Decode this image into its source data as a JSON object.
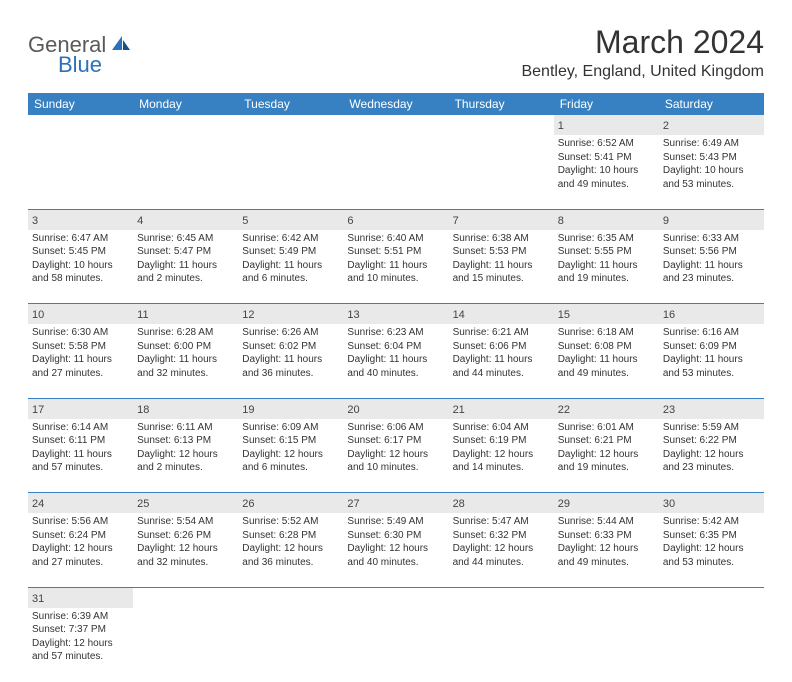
{
  "brand": {
    "part1": "General",
    "part2": "Blue"
  },
  "title": "March 2024",
  "location": "Bentley, England, United Kingdom",
  "dayHeaders": [
    "Sunday",
    "Monday",
    "Tuesday",
    "Wednesday",
    "Thursday",
    "Friday",
    "Saturday"
  ],
  "colors": {
    "headerBg": "#3781c2",
    "headerText": "#ffffff",
    "dayNumBg": "#e9e9e9",
    "cellBorder": "#3781c2",
    "brandGray": "#5a5a5a",
    "brandBlue": "#2b72b8"
  },
  "weeks": [
    [
      {
        "n": "",
        "lines": []
      },
      {
        "n": "",
        "lines": []
      },
      {
        "n": "",
        "lines": []
      },
      {
        "n": "",
        "lines": []
      },
      {
        "n": "",
        "lines": []
      },
      {
        "n": "1",
        "lines": [
          "Sunrise: 6:52 AM",
          "Sunset: 5:41 PM",
          "Daylight: 10 hours",
          "and 49 minutes."
        ]
      },
      {
        "n": "2",
        "lines": [
          "Sunrise: 6:49 AM",
          "Sunset: 5:43 PM",
          "Daylight: 10 hours",
          "and 53 minutes."
        ]
      }
    ],
    [
      {
        "n": "3",
        "lines": [
          "Sunrise: 6:47 AM",
          "Sunset: 5:45 PM",
          "Daylight: 10 hours",
          "and 58 minutes."
        ]
      },
      {
        "n": "4",
        "lines": [
          "Sunrise: 6:45 AM",
          "Sunset: 5:47 PM",
          "Daylight: 11 hours",
          "and 2 minutes."
        ]
      },
      {
        "n": "5",
        "lines": [
          "Sunrise: 6:42 AM",
          "Sunset: 5:49 PM",
          "Daylight: 11 hours",
          "and 6 minutes."
        ]
      },
      {
        "n": "6",
        "lines": [
          "Sunrise: 6:40 AM",
          "Sunset: 5:51 PM",
          "Daylight: 11 hours",
          "and 10 minutes."
        ]
      },
      {
        "n": "7",
        "lines": [
          "Sunrise: 6:38 AM",
          "Sunset: 5:53 PM",
          "Daylight: 11 hours",
          "and 15 minutes."
        ]
      },
      {
        "n": "8",
        "lines": [
          "Sunrise: 6:35 AM",
          "Sunset: 5:55 PM",
          "Daylight: 11 hours",
          "and 19 minutes."
        ]
      },
      {
        "n": "9",
        "lines": [
          "Sunrise: 6:33 AM",
          "Sunset: 5:56 PM",
          "Daylight: 11 hours",
          "and 23 minutes."
        ]
      }
    ],
    [
      {
        "n": "10",
        "lines": [
          "Sunrise: 6:30 AM",
          "Sunset: 5:58 PM",
          "Daylight: 11 hours",
          "and 27 minutes."
        ]
      },
      {
        "n": "11",
        "lines": [
          "Sunrise: 6:28 AM",
          "Sunset: 6:00 PM",
          "Daylight: 11 hours",
          "and 32 minutes."
        ]
      },
      {
        "n": "12",
        "lines": [
          "Sunrise: 6:26 AM",
          "Sunset: 6:02 PM",
          "Daylight: 11 hours",
          "and 36 minutes."
        ]
      },
      {
        "n": "13",
        "lines": [
          "Sunrise: 6:23 AM",
          "Sunset: 6:04 PM",
          "Daylight: 11 hours",
          "and 40 minutes."
        ]
      },
      {
        "n": "14",
        "lines": [
          "Sunrise: 6:21 AM",
          "Sunset: 6:06 PM",
          "Daylight: 11 hours",
          "and 44 minutes."
        ]
      },
      {
        "n": "15",
        "lines": [
          "Sunrise: 6:18 AM",
          "Sunset: 6:08 PM",
          "Daylight: 11 hours",
          "and 49 minutes."
        ]
      },
      {
        "n": "16",
        "lines": [
          "Sunrise: 6:16 AM",
          "Sunset: 6:09 PM",
          "Daylight: 11 hours",
          "and 53 minutes."
        ]
      }
    ],
    [
      {
        "n": "17",
        "lines": [
          "Sunrise: 6:14 AM",
          "Sunset: 6:11 PM",
          "Daylight: 11 hours",
          "and 57 minutes."
        ]
      },
      {
        "n": "18",
        "lines": [
          "Sunrise: 6:11 AM",
          "Sunset: 6:13 PM",
          "Daylight: 12 hours",
          "and 2 minutes."
        ]
      },
      {
        "n": "19",
        "lines": [
          "Sunrise: 6:09 AM",
          "Sunset: 6:15 PM",
          "Daylight: 12 hours",
          "and 6 minutes."
        ]
      },
      {
        "n": "20",
        "lines": [
          "Sunrise: 6:06 AM",
          "Sunset: 6:17 PM",
          "Daylight: 12 hours",
          "and 10 minutes."
        ]
      },
      {
        "n": "21",
        "lines": [
          "Sunrise: 6:04 AM",
          "Sunset: 6:19 PM",
          "Daylight: 12 hours",
          "and 14 minutes."
        ]
      },
      {
        "n": "22",
        "lines": [
          "Sunrise: 6:01 AM",
          "Sunset: 6:21 PM",
          "Daylight: 12 hours",
          "and 19 minutes."
        ]
      },
      {
        "n": "23",
        "lines": [
          "Sunrise: 5:59 AM",
          "Sunset: 6:22 PM",
          "Daylight: 12 hours",
          "and 23 minutes."
        ]
      }
    ],
    [
      {
        "n": "24",
        "lines": [
          "Sunrise: 5:56 AM",
          "Sunset: 6:24 PM",
          "Daylight: 12 hours",
          "and 27 minutes."
        ]
      },
      {
        "n": "25",
        "lines": [
          "Sunrise: 5:54 AM",
          "Sunset: 6:26 PM",
          "Daylight: 12 hours",
          "and 32 minutes."
        ]
      },
      {
        "n": "26",
        "lines": [
          "Sunrise: 5:52 AM",
          "Sunset: 6:28 PM",
          "Daylight: 12 hours",
          "and 36 minutes."
        ]
      },
      {
        "n": "27",
        "lines": [
          "Sunrise: 5:49 AM",
          "Sunset: 6:30 PM",
          "Daylight: 12 hours",
          "and 40 minutes."
        ]
      },
      {
        "n": "28",
        "lines": [
          "Sunrise: 5:47 AM",
          "Sunset: 6:32 PM",
          "Daylight: 12 hours",
          "and 44 minutes."
        ]
      },
      {
        "n": "29",
        "lines": [
          "Sunrise: 5:44 AM",
          "Sunset: 6:33 PM",
          "Daylight: 12 hours",
          "and 49 minutes."
        ]
      },
      {
        "n": "30",
        "lines": [
          "Sunrise: 5:42 AM",
          "Sunset: 6:35 PM",
          "Daylight: 12 hours",
          "and 53 minutes."
        ]
      }
    ],
    [
      {
        "n": "31",
        "lines": [
          "Sunrise: 6:39 AM",
          "Sunset: 7:37 PM",
          "Daylight: 12 hours",
          "and 57 minutes."
        ]
      },
      {
        "n": "",
        "lines": []
      },
      {
        "n": "",
        "lines": []
      },
      {
        "n": "",
        "lines": []
      },
      {
        "n": "",
        "lines": []
      },
      {
        "n": "",
        "lines": []
      },
      {
        "n": "",
        "lines": []
      }
    ]
  ]
}
